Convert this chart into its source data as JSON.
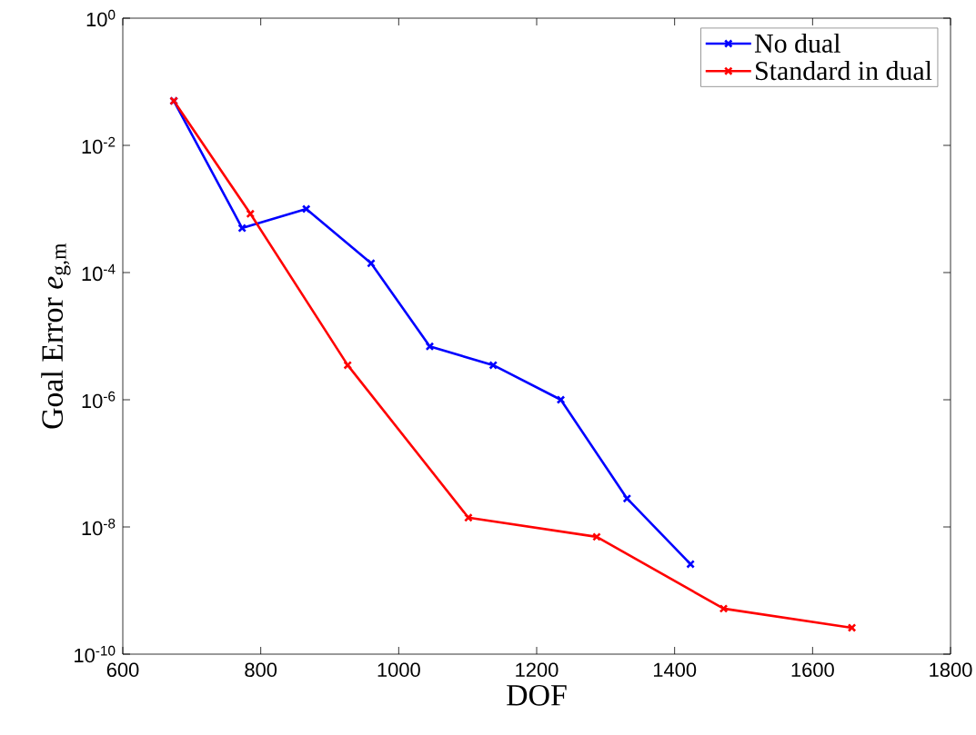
{
  "chart_data": {
    "type": "line",
    "xlabel": "DOF",
    "ylabel": "Goal Error *e*$_{g,m}$",
    "log": "y",
    "marker": "cross",
    "line_style": "solid",
    "legend": "top right",
    "grid": false,
    "xlim": [
      600,
      1800
    ],
    "xticks": [
      600,
      800,
      1000,
      1200,
      1400,
      1600,
      1800
    ],
    "ylim": [
      1e-10,
      1
    ],
    "yticks": [
      {
        "value": 1e-10,
        "label": "10$^{-10}$"
      },
      {
        "value": 1e-08,
        "label": "10$^{-8}$"
      },
      {
        "value": 1e-06,
        "label": "10$^{-6}$"
      },
      {
        "value": 0.0001,
        "label": "10$^{-4}$"
      },
      {
        "value": 0.01,
        "label": "10$^{-2}$"
      },
      {
        "value": 1,
        "label": "10$^{0}$"
      }
    ],
    "series": [
      {
        "name": "No dual",
        "color": "#0000ff",
        "x": [
          674,
          773,
          866,
          960,
          1045,
          1137,
          1235,
          1331,
          1423
        ],
        "values": [
          0.05,
          0.0005,
          0.001,
          0.00014,
          6.9e-06,
          3.5e-06,
          1e-06,
          2.8e-08,
          2.6e-09
        ]
      },
      {
        "name": "Standard in dual",
        "color": "#ff0000",
        "x": [
          674,
          785,
          926,
          1101,
          1287,
          1471,
          1657
        ],
        "values": [
          0.05,
          0.00084,
          3.5e-06,
          1.4e-08,
          7e-09,
          5.2e-10,
          2.6e-10
        ]
      }
    ]
  }
}
